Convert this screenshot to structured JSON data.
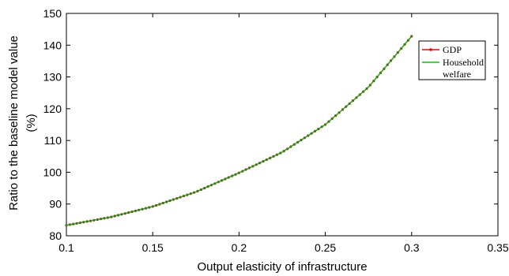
{
  "chart_data": {
    "type": "line",
    "title": "",
    "xlabel": "Output elasticity of infrastructure",
    "ylabel_lines": [
      "Ratio to the baseline model value",
      "(%)"
    ],
    "xlim": [
      0.1,
      0.35
    ],
    "ylim": [
      80,
      150
    ],
    "xticks": [
      "0.1",
      "0.15",
      "0.2",
      "0.25",
      "0.3",
      "0.35"
    ],
    "yticks": [
      "80",
      "90",
      "100",
      "110",
      "120",
      "130",
      "140",
      "150"
    ],
    "grid": false,
    "legend_position": "top-right",
    "legend_entries": [
      "GDP",
      "Household",
      "welfare"
    ],
    "series": [
      {
        "name": "GDP",
        "color": "#ff0000",
        "marker": "dot",
        "x": [
          0.1,
          0.125,
          0.15,
          0.175,
          0.2,
          0.225,
          0.25,
          0.275,
          0.3
        ],
        "values": [
          83.3,
          85.8,
          89.2,
          93.8,
          99.8,
          106.3,
          115.0,
          126.8,
          142.8
        ]
      },
      {
        "name": "Household welfare",
        "color": "#00cc00",
        "marker": "none",
        "x": [
          0.1,
          0.125,
          0.15,
          0.175,
          0.2,
          0.225,
          0.25,
          0.275,
          0.3
        ],
        "values": [
          83.3,
          85.8,
          89.2,
          93.8,
          99.8,
          106.3,
          115.0,
          126.8,
          142.8
        ]
      }
    ]
  }
}
